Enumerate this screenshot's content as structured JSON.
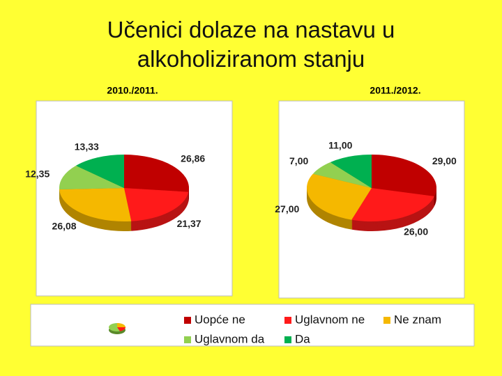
{
  "title": "Učenici dolaze na nastavu u alkoholiziranom stanju",
  "chart_data": [
    {
      "type": "pie",
      "title": "2010./2011.",
      "categories": [
        "Uopće ne",
        "Uglavnom ne",
        "Ne znam",
        "Uglavnom da",
        "Da"
      ],
      "values": [
        26.86,
        21.37,
        26.08,
        12.35,
        13.33
      ],
      "value_labels": [
        "26,86",
        "21,37",
        "26,08",
        "12,35",
        "13,33"
      ],
      "colors": [
        "#c00000",
        "#ff1a1a",
        "#f5b800",
        "#92d050",
        "#00b050"
      ]
    },
    {
      "type": "pie",
      "title": "2011./2012.",
      "categories": [
        "Uopće ne",
        "Uglavnom ne",
        "Ne znam",
        "Uglavnom da",
        "Da"
      ],
      "values": [
        29.0,
        26.0,
        27.0,
        7.0,
        11.0
      ],
      "value_labels": [
        "29,00",
        "26,00",
        "27,00",
        "7,00",
        "11,00"
      ],
      "colors": [
        "#c00000",
        "#ff1a1a",
        "#f5b800",
        "#92d050",
        "#00b050"
      ]
    }
  ]
}
